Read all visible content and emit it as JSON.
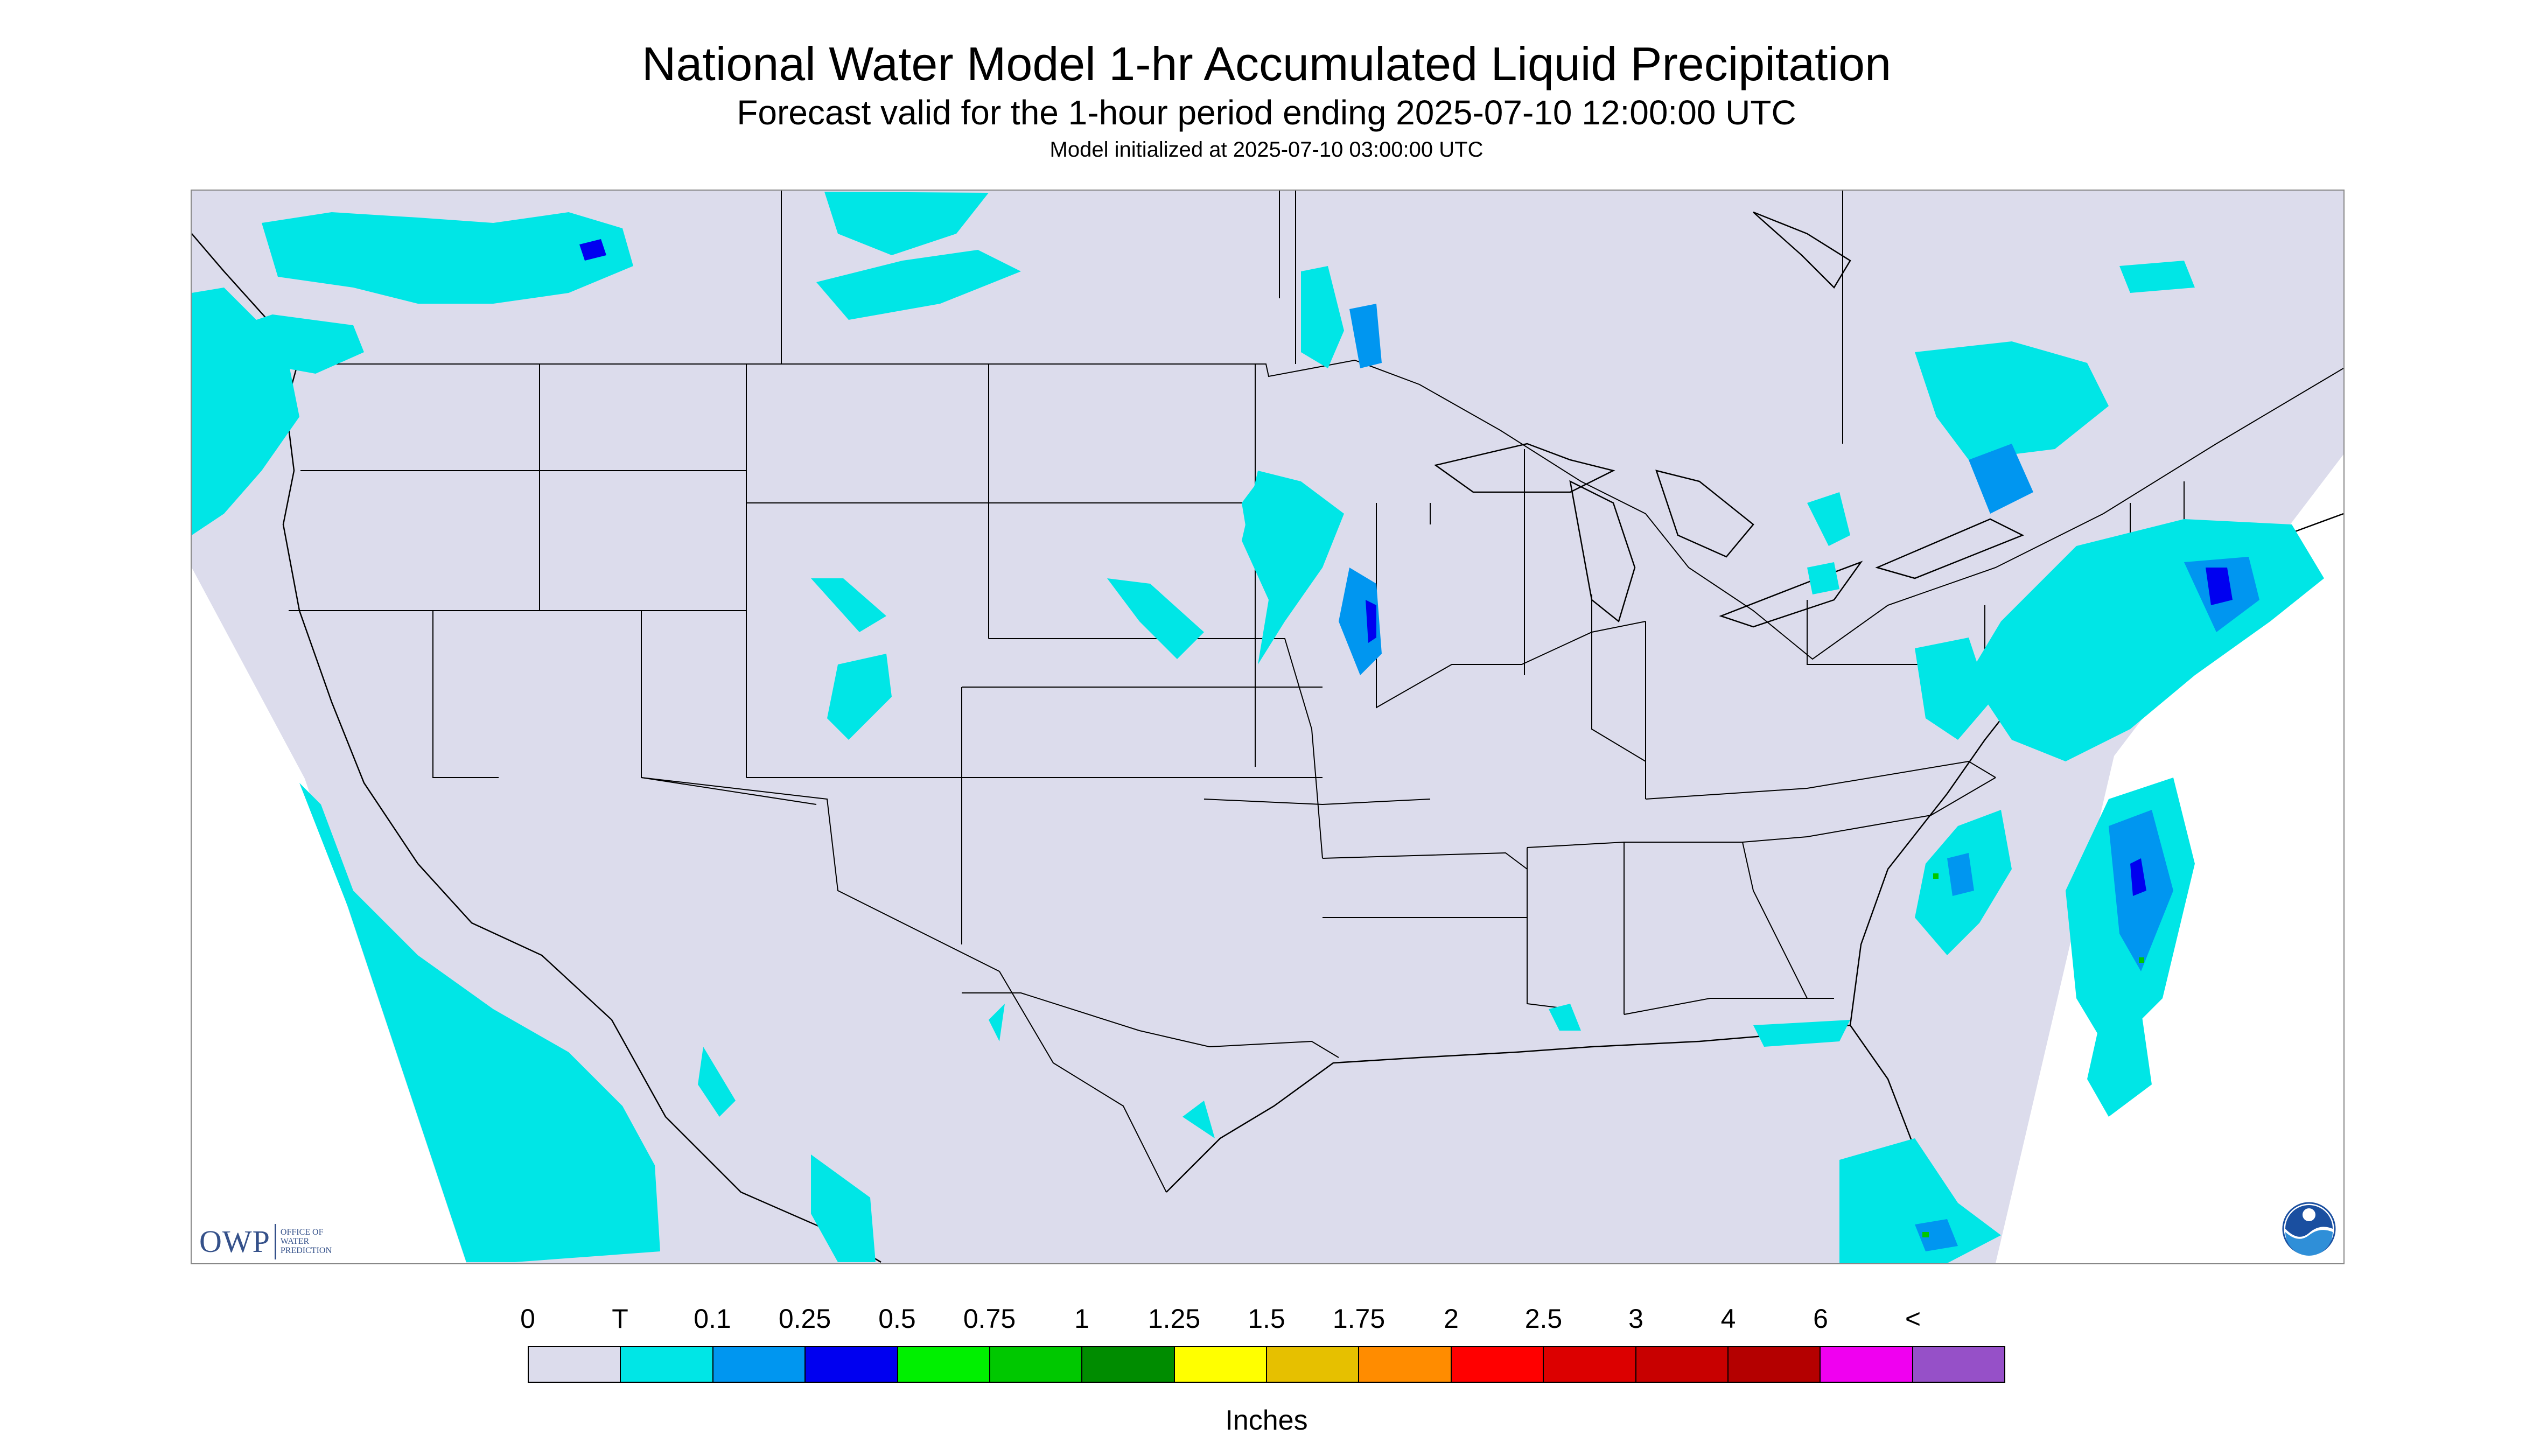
{
  "header": {
    "title": "National Water Model 1-hr Accumulated Liquid Precipitation",
    "subtitle": "Forecast valid for the 1-hour period ending 2025-07-10 12:00:00 UTC",
    "init": "Model initialized at 2025-07-10 03:00:00 UTC"
  },
  "logos": {
    "owp_mark": "OWP",
    "owp_text": [
      "Office of",
      "Water",
      "Prediction"
    ],
    "noaa": "NOAA"
  },
  "legend": {
    "labels": [
      "0",
      "T",
      "0.1",
      "0.25",
      "0.5",
      "0.75",
      "1",
      "1.25",
      "1.5",
      "1.75",
      "2",
      "2.5",
      "3",
      "4",
      "6",
      "<"
    ],
    "colors": [
      "#dcdcec",
      "#00e6e6",
      "#0096f0",
      "#0000f0",
      "#00f000",
      "#00c800",
      "#008c00",
      "#ffff00",
      "#e6c000",
      "#ff8c00",
      "#ff0000",
      "#dc0000",
      "#c80000",
      "#b40000",
      "#f000f0",
      "#9650c8"
    ],
    "units": "Inches"
  },
  "map": {
    "background": "#dcdcec",
    "outside": "#ffffff",
    "boundary_color": "#000000",
    "trace_color": "#00e6e6",
    "light_color": "#0096f0",
    "moderate_color": "#0000f0"
  }
}
